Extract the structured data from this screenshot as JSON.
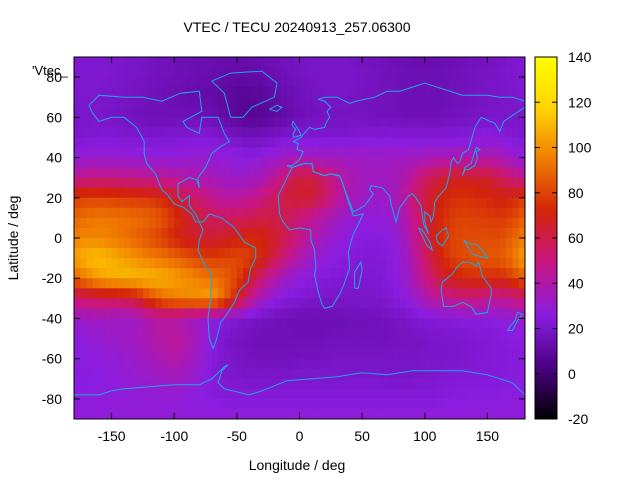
{
  "chart_data": {
    "type": "heatmap",
    "title": "VTEC / TECU 20240913_257.06300",
    "key_label": "'Vtec_",
    "xlabel": "Longitude / deg",
    "ylabel": "Latitude / deg",
    "xlim": [
      -180,
      180
    ],
    "ylim": [
      -90,
      90
    ],
    "x_ticks": [
      -150,
      -100,
      -50,
      0,
      50,
      100,
      150
    ],
    "y_ticks": [
      -80,
      -60,
      -40,
      -20,
      0,
      20,
      40,
      60,
      80
    ],
    "colorbar": {
      "range": [
        -20,
        140
      ],
      "ticks": [
        -20,
        0,
        20,
        40,
        60,
        80,
        100,
        120,
        140
      ],
      "colors": [
        "#000000",
        "#4b0082",
        "#8a1de0",
        "#c71585",
        "#d2230a",
        "#f07a00",
        "#ffd400",
        "#ffff00"
      ]
    },
    "grid": {
      "x": [
        -180,
        -170,
        -160,
        -150,
        -140,
        -130,
        -120,
        -110,
        -100,
        -90,
        -80,
        -70,
        -60,
        -50,
        -40,
        -30,
        -20,
        -10,
        0,
        10,
        20,
        30,
        40,
        50,
        60,
        70,
        80,
        90,
        100,
        110,
        120,
        130,
        140,
        150,
        160,
        170,
        180
      ],
      "y": [
        90,
        80,
        70,
        60,
        50,
        40,
        30,
        20,
        10,
        0,
        -10,
        -20,
        -30,
        -40,
        -50,
        -60,
        -70,
        -80,
        -90
      ],
      "z": [
        [
          22,
          22,
          22,
          21,
          20,
          19,
          18,
          17,
          16,
          15,
          14,
          14,
          13,
          13,
          14,
          15,
          16,
          17,
          18,
          19,
          19,
          19,
          19,
          18,
          17,
          16,
          15,
          14,
          14,
          14,
          15,
          16,
          17,
          18,
          19,
          21,
          22
        ],
        [
          22,
          22,
          22,
          21,
          20,
          19,
          18,
          17,
          16,
          15,
          14,
          13,
          12,
          11,
          11,
          12,
          14,
          16,
          18,
          19,
          20,
          20,
          20,
          19,
          18,
          17,
          16,
          15,
          15,
          15,
          16,
          17,
          18,
          19,
          20,
          21,
          22
        ],
        [
          21,
          21,
          21,
          20,
          19,
          18,
          17,
          16,
          14,
          13,
          12,
          11,
          10,
          8,
          8,
          9,
          11,
          14,
          16,
          18,
          19,
          19,
          19,
          18,
          18,
          17,
          16,
          15,
          15,
          15,
          16,
          17,
          18,
          19,
          20,
          21,
          21
        ],
        [
          20,
          20,
          20,
          19,
          18,
          17,
          16,
          16,
          16,
          16,
          16,
          15,
          12,
          9,
          7,
          8,
          10,
          12,
          15,
          17,
          18,
          18,
          18,
          18,
          17,
          17,
          16,
          16,
          16,
          16,
          17,
          18,
          19,
          20,
          20,
          20,
          20
        ],
        [
          21,
          22,
          23,
          23,
          22,
          22,
          21,
          21,
          22,
          23,
          24,
          23,
          21,
          19,
          17,
          18,
          20,
          22,
          23,
          23,
          22,
          22,
          22,
          23,
          23,
          24,
          24,
          24,
          24,
          24,
          23,
          24,
          25,
          26,
          25,
          23,
          21
        ],
        [
          28,
          30,
          30,
          30,
          29,
          29,
          28,
          28,
          28,
          29,
          30,
          30,
          28,
          27,
          26,
          28,
          30,
          33,
          34,
          34,
          34,
          34,
          33,
          33,
          33,
          33,
          33,
          34,
          35,
          36,
          37,
          38,
          38,
          39,
          36,
          32,
          28
        ],
        [
          45,
          47,
          48,
          48,
          47,
          46,
          45,
          44,
          42,
          40,
          38,
          36,
          33,
          32,
          33,
          36,
          44,
          55,
          63,
          62,
          55,
          45,
          38,
          35,
          34,
          34,
          37,
          44,
          55,
          62,
          66,
          67,
          66,
          65,
          58,
          52,
          45
        ],
        [
          78,
          80,
          80,
          79,
          78,
          77,
          76,
          72,
          66,
          58,
          52,
          46,
          42,
          42,
          45,
          50,
          56,
          62,
          66,
          64,
          56,
          45,
          37,
          33,
          32,
          32,
          38,
          50,
          62,
          70,
          74,
          75,
          74,
          73,
          70,
          72,
          78
        ],
        [
          88,
          92,
          94,
          93,
          92,
          91,
          89,
          85,
          76,
          68,
          62,
          57,
          55,
          56,
          58,
          60,
          60,
          56,
          50,
          45,
          39,
          34,
          30,
          28,
          28,
          29,
          34,
          46,
          60,
          71,
          77,
          80,
          79,
          78,
          77,
          80,
          88
        ],
        [
          96,
          98,
          97,
          95,
          92,
          88,
          83,
          78,
          71,
          66,
          64,
          63,
          66,
          70,
          72,
          72,
          66,
          58,
          49,
          40,
          33,
          29,
          27,
          25,
          25,
          26,
          30,
          42,
          58,
          71,
          79,
          82,
          82,
          82,
          82,
          88,
          96
        ],
        [
          105,
          110,
          112,
          108,
          104,
          100,
          96,
          93,
          90,
          85,
          80,
          78,
          80,
          82,
          79,
          72,
          60,
          48,
          38,
          32,
          28,
          26,
          24,
          23,
          23,
          24,
          28,
          38,
          54,
          68,
          78,
          82,
          84,
          85,
          86,
          93,
          105
        ],
        [
          88,
          96,
          104,
          108,
          110,
          110,
          110,
          108,
          104,
          100,
          96,
          92,
          88,
          80,
          66,
          52,
          40,
          32,
          28,
          25,
          24,
          23,
          22,
          22,
          22,
          24,
          28,
          36,
          48,
          60,
          68,
          72,
          74,
          74,
          72,
          78,
          88
        ],
        [
          52,
          56,
          58,
          59,
          60,
          66,
          80,
          90,
          96,
          98,
          102,
          104,
          90,
          70,
          48,
          35,
          28,
          24,
          22,
          21,
          20,
          20,
          20,
          20,
          20,
          22,
          25,
          30,
          38,
          44,
          48,
          50,
          50,
          48,
          46,
          48,
          52
        ],
        [
          32,
          33,
          33,
          33,
          32,
          33,
          38,
          42,
          40,
          36,
          32,
          28,
          25,
          22,
          20,
          18,
          17,
          16,
          15,
          15,
          15,
          15,
          16,
          16,
          17,
          18,
          19,
          21,
          23,
          24,
          25,
          26,
          26,
          26,
          27,
          29,
          32
        ],
        [
          26,
          28,
          30,
          32,
          33,
          35,
          38,
          42,
          44,
          40,
          33,
          25,
          20,
          18,
          17,
          16,
          16,
          16,
          16,
          16,
          16,
          17,
          17,
          17,
          17,
          17,
          18,
          18,
          19,
          20,
          20,
          21,
          22,
          23,
          24,
          25,
          26
        ],
        [
          25,
          26,
          27,
          28,
          30,
          32,
          35,
          38,
          40,
          37,
          31,
          25,
          21,
          19,
          18,
          17,
          17,
          17,
          18,
          18,
          18,
          19,
          19,
          19,
          19,
          19,
          19,
          19,
          20,
          20,
          20,
          21,
          22,
          23,
          24,
          24,
          25
        ],
        [
          25,
          25,
          26,
          27,
          28,
          30,
          31,
          33,
          34,
          32,
          28,
          24,
          22,
          21,
          20,
          20,
          20,
          21,
          21,
          21,
          21,
          21,
          21,
          21,
          21,
          20,
          20,
          20,
          21,
          22,
          23,
          24,
          24,
          24,
          24,
          25,
          25
        ],
        [
          27,
          27,
          27,
          27,
          28,
          28,
          28,
          28,
          28,
          27,
          26,
          25,
          24,
          24,
          24,
          24,
          24,
          24,
          24,
          24,
          24,
          24,
          24,
          24,
          24,
          24,
          24,
          24,
          24,
          24,
          25,
          25,
          26,
          26,
          26,
          27,
          27
        ],
        [
          28,
          28,
          28,
          28,
          28,
          28,
          28,
          28,
          28,
          28,
          28,
          28,
          28,
          28,
          28,
          28,
          28,
          28,
          28,
          28,
          28,
          28,
          28,
          28,
          28,
          28,
          28,
          28,
          28,
          28,
          28,
          28,
          28,
          28,
          28,
          28,
          28
        ]
      ]
    }
  }
}
